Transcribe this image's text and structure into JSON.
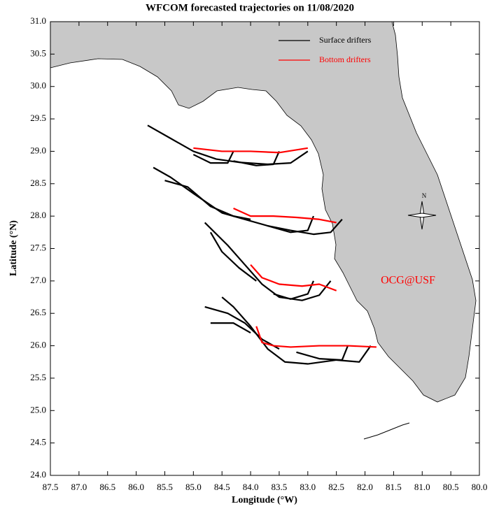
{
  "chart_data": {
    "type": "trajectory",
    "title": "WFCOM forecasted trajectories on 11/08/2020",
    "x_label": "Longitude (°W)",
    "y_label": "Latitude (°N)",
    "annotation": "OCG@USF",
    "xlim": [
      87.5,
      80.0
    ],
    "ylim": [
      24.0,
      31.0
    ],
    "xticks": [
      87.5,
      {
        "value": 87,
        "label": "87.0"
      },
      86.5,
      {
        "value": 86,
        "label": "86.0"
      },
      85.5,
      {
        "value": 85,
        "label": "85.0"
      },
      84.5,
      {
        "value": 84,
        "label": "84.0"
      },
      83.5,
      {
        "value": 83,
        "label": "83.0"
      },
      82.5,
      {
        "value": 82,
        "label": "82.0"
      },
      81.5,
      {
        "value": 81,
        "label": "81.0"
      },
      80.5,
      {
        "value": 80,
        "label": "80.0"
      }
    ],
    "yticks": [
      {
        "value": 24,
        "label": "24.0"
      },
      24.5,
      {
        "value": 25,
        "label": "25.0"
      },
      25.5,
      {
        "value": 26,
        "label": "26.0"
      },
      26.5,
      {
        "value": 27,
        "label": "27.0"
      },
      27.5,
      {
        "value": 28,
        "label": "28.0"
      },
      28.5,
      {
        "value": 29,
        "label": "29.0"
      },
      29.5,
      {
        "value": 30,
        "label": "30.0"
      },
      30.5,
      {
        "value": 31,
        "label": "31.0"
      }
    ],
    "legend": "upper right",
    "series": [
      {
        "name": "Surface drifters",
        "color": "#000000",
        "tracks": [
          {
            "x": [
              83.0,
              83.3,
              83.7,
              84.2,
              84.6,
              85.0,
              85.4,
              85.8
            ],
            "y": [
              29.0,
              28.82,
              28.8,
              28.83,
              28.88,
              29.0,
              29.2,
              29.4
            ]
          },
          {
            "x": [
              83.5,
              83.6,
              83.9,
              84.3
            ],
            "y": [
              29.0,
              28.8,
              28.78,
              28.85
            ]
          },
          {
            "x": [
              84.3,
              84.4,
              84.7,
              85.0
            ],
            "y": [
              29.0,
              28.82,
              28.82,
              28.95
            ]
          },
          {
            "x": [
              82.4,
              82.6,
              82.9,
              83.3,
              83.7,
              84.1,
              84.5,
              85.0,
              85.4,
              85.7
            ],
            "y": [
              27.95,
              27.75,
              27.72,
              27.78,
              27.85,
              27.95,
              28.05,
              28.35,
              28.6,
              28.75
            ]
          },
          {
            "x": [
              82.9,
              83.0,
              83.3,
              83.7
            ],
            "y": [
              28.0,
              27.78,
              27.75,
              27.85
            ]
          },
          {
            "x": [
              84.0,
              84.3,
              84.7,
              85.1,
              85.5
            ],
            "y": [
              27.95,
              28.0,
              28.15,
              28.45,
              28.55
            ]
          },
          {
            "x": [
              82.6,
              82.8,
              83.1,
              83.5,
              83.8,
              84.1,
              84.4,
              84.8
            ],
            "y": [
              27.0,
              26.78,
              26.7,
              26.75,
              26.95,
              27.25,
              27.55,
              27.9
            ]
          },
          {
            "x": [
              82.9,
              83.0,
              83.3,
              83.6
            ],
            "y": [
              27.0,
              26.8,
              26.72,
              26.8
            ]
          },
          {
            "x": [
              83.9,
              84.2,
              84.5,
              84.7
            ],
            "y": [
              27.0,
              27.2,
              27.45,
              27.75
            ]
          },
          {
            "x": [
              81.9,
              82.1,
              82.5,
              83.0,
              83.4,
              83.7,
              84.0,
              84.3,
              84.5
            ],
            "y": [
              26.0,
              25.75,
              25.78,
              25.72,
              25.75,
              25.95,
              26.3,
              26.6,
              26.75
            ]
          },
          {
            "x": [
              82.3,
              82.4,
              82.8,
              83.2
            ],
            "y": [
              26.0,
              25.78,
              25.8,
              25.9
            ]
          },
          {
            "x": [
              83.5,
              83.8,
              84.1,
              84.4,
              84.8
            ],
            "y": [
              25.95,
              26.1,
              26.35,
              26.5,
              26.6
            ]
          },
          {
            "x": [
              84.0,
              84.3,
              84.7
            ],
            "y": [
              26.2,
              26.35,
              26.35
            ]
          }
        ]
      },
      {
        "name": "Bottom drifters",
        "color": "#ff0000",
        "tracks": [
          {
            "x": [
              85.0,
              84.5,
              84.0,
              83.5,
              83.0
            ],
            "y": [
              29.05,
              29.0,
              29.0,
              28.98,
              29.05
            ]
          },
          {
            "x": [
              84.3,
              84.0,
              83.6,
              83.2,
              82.8,
              82.5
            ],
            "y": [
              28.12,
              28.0,
              28.0,
              27.98,
              27.95,
              27.9
            ]
          },
          {
            "x": [
              84.0,
              83.8,
              83.5,
              83.1,
              82.8,
              82.5
            ],
            "y": [
              27.25,
              27.05,
              26.95,
              26.92,
              26.95,
              26.85
            ]
          },
          {
            "x": [
              83.9,
              83.8,
              83.6,
              83.3,
              82.8,
              82.3,
              81.8
            ],
            "y": [
              26.3,
              26.05,
              26.0,
              25.98,
              26.0,
              26.0,
              25.98
            ]
          }
        ]
      }
    ]
  }
}
